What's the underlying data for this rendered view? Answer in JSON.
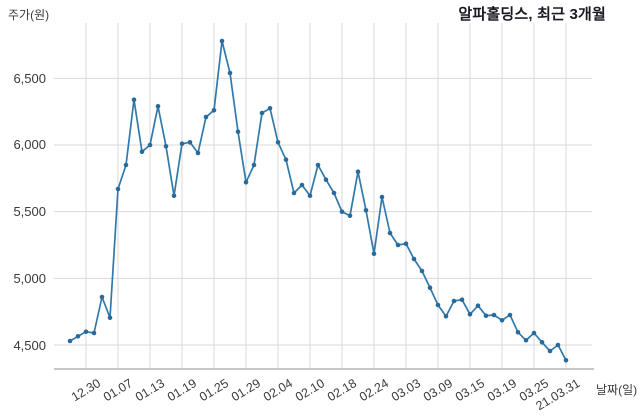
{
  "chart_data": {
    "type": "line",
    "title": "알파홀딩스, 최근 3개월",
    "ylabel": "주가(원)",
    "xlabel": "날짜(일)",
    "x": [
      "12.28",
      "12.29",
      "12.30",
      "01.04",
      "01.05",
      "01.06",
      "01.07",
      "01.08",
      "01.11",
      "01.12",
      "01.13",
      "01.14",
      "01.15",
      "01.18",
      "01.19",
      "01.20",
      "01.21",
      "01.22",
      "01.25",
      "01.26",
      "01.27",
      "01.28",
      "01.29",
      "02.01",
      "02.02",
      "02.03",
      "02.04",
      "02.05",
      "02.08",
      "02.09",
      "02.10",
      "02.15",
      "02.16",
      "02.17",
      "02.18",
      "02.19",
      "02.22",
      "02.23",
      "02.24",
      "02.25",
      "02.26",
      "03.02",
      "03.03",
      "03.04",
      "03.05",
      "03.08",
      "03.09",
      "03.10",
      "03.11",
      "03.12",
      "03.15",
      "03.16",
      "03.17",
      "03.18",
      "03.19",
      "03.22",
      "03.23",
      "03.24",
      "03.25",
      "03.26",
      "03.29",
      "03.30",
      "03.31"
    ],
    "values": [
      4530,
      4565,
      4600,
      4590,
      4860,
      4705,
      5670,
      5850,
      6340,
      5950,
      6000,
      6290,
      5990,
      5620,
      6010,
      6020,
      5940,
      6210,
      6260,
      6780,
      6540,
      6100,
      5720,
      5850,
      6240,
      6275,
      6020,
      5890,
      5640,
      5700,
      5620,
      5850,
      5740,
      5640,
      5500,
      5470,
      5800,
      5510,
      5185,
      5610,
      5340,
      5250,
      5260,
      5145,
      5055,
      4930,
      4800,
      4715,
      4830,
      4840,
      4730,
      4795,
      4720,
      4725,
      4685,
      4725,
      4595,
      4535,
      4590,
      4520,
      4455,
      4500,
      4385
    ],
    "yticks": [
      4500,
      5000,
      5500,
      6000,
      6500
    ],
    "ytick_labels": [
      "4,500",
      "5,000",
      "5,500",
      "6,000",
      "6,500"
    ],
    "xtick_labels": [
      "12.30",
      "01.07",
      "01.13",
      "01.19",
      "01.25",
      "01.29",
      "02.04",
      "02.10",
      "02.18",
      "02.24",
      "03.03",
      "03.09",
      "03.15",
      "03.19",
      "03.25",
      "21.03.31"
    ],
    "xtick_indices": [
      2,
      6,
      10,
      14,
      18,
      22,
      26,
      30,
      34,
      38,
      42,
      46,
      50,
      54,
      58,
      62
    ],
    "ylim": [
      4320,
      6920
    ],
    "grid": true,
    "legend": "none",
    "line_color": "#3079ab",
    "marker_color": "#276b9d",
    "grid_color": "#d8d8d8",
    "axis_color": "#a6a6a6",
    "tick_text_color": "#3a3a3a",
    "title_color": "#1a1a24"
  }
}
